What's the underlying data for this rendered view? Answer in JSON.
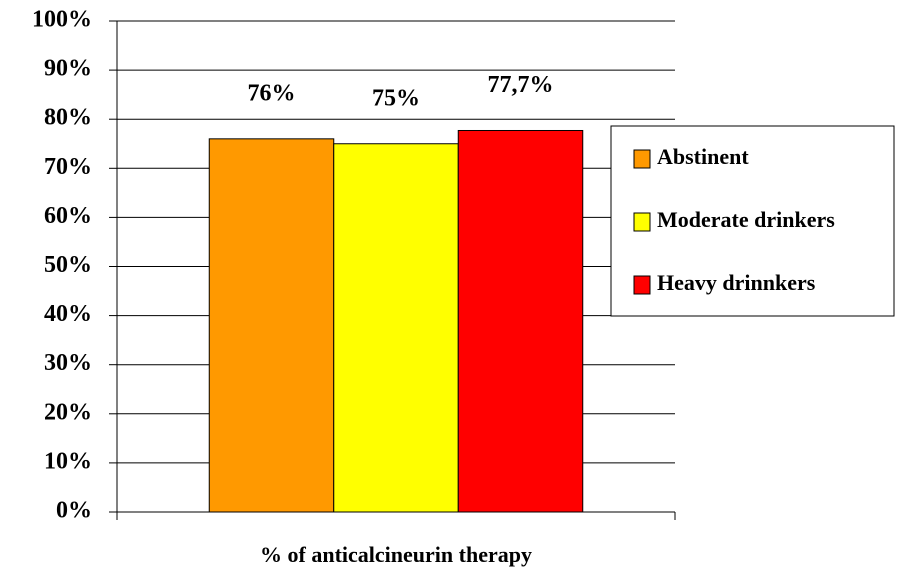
{
  "chart_data": {
    "type": "bar",
    "categories": [
      "% of anticalcineurin therapy"
    ],
    "series": [
      {
        "name": "Abstinent",
        "color": "#ff9900",
        "values": [
          76
        ],
        "value_labels": [
          "76%"
        ]
      },
      {
        "name": "Moderate drinkers",
        "color": "#ffff00",
        "values": [
          75
        ],
        "value_labels": [
          "75%"
        ]
      },
      {
        "name": "Heavy drinnkers",
        "color": "#ff0000",
        "values": [
          77.7
        ],
        "value_labels": [
          "77,7%"
        ]
      }
    ],
    "ylim": [
      0,
      100
    ],
    "yticks": [
      {
        "value": 0,
        "label": "0%"
      },
      {
        "value": 10,
        "label": "10%"
      },
      {
        "value": 20,
        "label": "20%"
      },
      {
        "value": 30,
        "label": "30%"
      },
      {
        "value": 40,
        "label": "40%"
      },
      {
        "value": 50,
        "label": "50%"
      },
      {
        "value": 60,
        "label": "60%"
      },
      {
        "value": 70,
        "label": "70%"
      },
      {
        "value": 80,
        "label": "80%"
      },
      {
        "value": 90,
        "label": "90%"
      },
      {
        "value": 100,
        "label": "100%"
      }
    ],
    "grid": true,
    "legend": "right"
  }
}
